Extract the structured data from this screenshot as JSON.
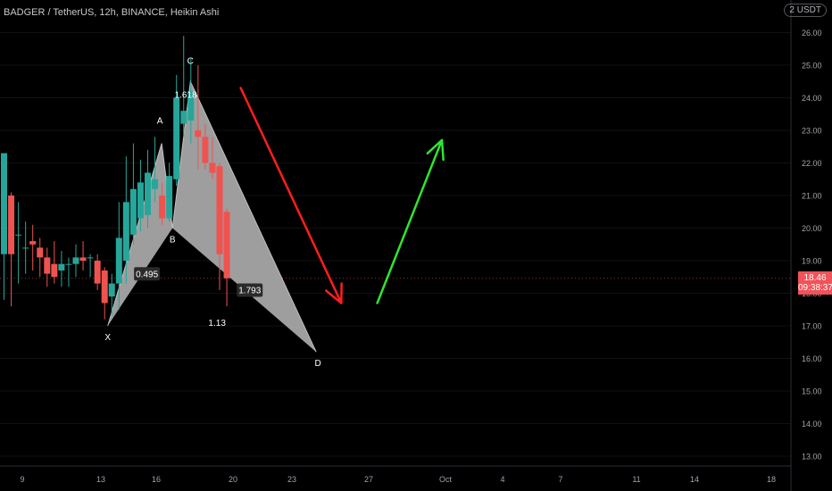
{
  "header": {
    "symbol_title": "BADGER / TetherUS, 12h, BINANCE, Heikin Ashi",
    "currency": "USDT",
    "currency_prefix": "2"
  },
  "last_price": {
    "value": "18.46",
    "countdown": "09:38:37",
    "y": 18.46
  },
  "colors": {
    "up": "#26a69a",
    "down": "#ef5350",
    "pattern_fill": "#a6a6a6",
    "arrow_down": "#ff1e1e",
    "arrow_up": "#2ee62e",
    "background": "#000000",
    "axis_text": "#a0a3ab"
  },
  "chart_data": {
    "type": "candlestick",
    "ylim": [
      12.7,
      27.0
    ],
    "y_ticks": [
      "13.00",
      "14.00",
      "15.00",
      "16.00",
      "17.00",
      "18.00",
      "19.00",
      "20.00",
      "21.00",
      "22.00",
      "23.00",
      "24.00",
      "25.00",
      "26.00"
    ],
    "x_ticks": [
      "9",
      "13",
      "16",
      "20",
      "23",
      "27",
      "Oct",
      "4",
      "7",
      "11",
      "14",
      "18"
    ],
    "candles": [
      {
        "o": 19.2,
        "h": 22.3,
        "l": 17.8,
        "c": 22.3
      },
      {
        "o": 21.0,
        "h": 21.1,
        "l": 17.6,
        "c": 19.2
      },
      {
        "o": 19.8,
        "h": 20.8,
        "l": 18.3,
        "c": 19.8
      },
      {
        "o": 19.4,
        "h": 20.2,
        "l": 18.6,
        "c": 19.4
      },
      {
        "o": 19.6,
        "h": 20.1,
        "l": 18.7,
        "c": 19.5
      },
      {
        "o": 19.4,
        "h": 19.7,
        "l": 18.5,
        "c": 19.1
      },
      {
        "o": 19.1,
        "h": 19.4,
        "l": 18.2,
        "c": 18.6
      },
      {
        "o": 18.9,
        "h": 19.6,
        "l": 18.3,
        "c": 18.5
      },
      {
        "o": 18.7,
        "h": 19.3,
        "l": 18.2,
        "c": 18.9
      },
      {
        "o": 18.9,
        "h": 19.1,
        "l": 18.2,
        "c": 18.9
      },
      {
        "o": 18.9,
        "h": 19.5,
        "l": 18.5,
        "c": 19.1
      },
      {
        "o": 19.1,
        "h": 19.6,
        "l": 18.7,
        "c": 19.0
      },
      {
        "o": 19.1,
        "h": 19.2,
        "l": 18.5,
        "c": 19.1
      },
      {
        "o": 19.0,
        "h": 19.2,
        "l": 18.1,
        "c": 18.3
      },
      {
        "o": 18.7,
        "h": 18.8,
        "l": 17.2,
        "c": 17.7
      },
      {
        "o": 17.9,
        "h": 18.6,
        "l": 17.3,
        "c": 18.3
      },
      {
        "o": 18.3,
        "h": 20.8,
        "l": 17.5,
        "c": 19.7
      },
      {
        "o": 19.0,
        "h": 22.2,
        "l": 18.3,
        "c": 20.8
      },
      {
        "o": 19.8,
        "h": 22.6,
        "l": 19.5,
        "c": 21.2
      },
      {
        "o": 20.3,
        "h": 22.1,
        "l": 19.9,
        "c": 21.4
      },
      {
        "o": 20.4,
        "h": 22.4,
        "l": 20.0,
        "c": 21.7
      },
      {
        "o": 21.2,
        "h": 22.8,
        "l": 20.8,
        "c": 21.5
      },
      {
        "o": 21.0,
        "h": 21.4,
        "l": 20.1,
        "c": 20.3
      },
      {
        "o": 20.3,
        "h": 22.0,
        "l": 20.2,
        "c": 21.6
      },
      {
        "o": 21.5,
        "h": 24.7,
        "l": 21.3,
        "c": 24.0
      },
      {
        "o": 23.2,
        "h": 25.9,
        "l": 22.8,
        "c": 23.6
      },
      {
        "o": 23.3,
        "h": 25.2,
        "l": 22.6,
        "c": 24.2
      },
      {
        "o": 23.0,
        "h": 25.0,
        "l": 21.8,
        "c": 22.8
      },
      {
        "o": 22.8,
        "h": 23.2,
        "l": 21.8,
        "c": 22.0
      },
      {
        "o": 22.0,
        "h": 22.8,
        "l": 21.5,
        "c": 21.7
      },
      {
        "o": 21.9,
        "h": 22.0,
        "l": 18.1,
        "c": 19.2
      },
      {
        "o": 20.5,
        "h": 20.6,
        "l": 17.6,
        "c": 18.46
      }
    ],
    "pattern": {
      "points": [
        {
          "label": "X",
          "candle": 14.5,
          "y": 17.0
        },
        {
          "label": "A",
          "candle": 22.0,
          "y": 22.6
        },
        {
          "label": "B",
          "candle": 23.5,
          "y": 20.0
        },
        {
          "label": "C",
          "candle": 26.0,
          "y": 24.5
        },
        {
          "label": "D",
          "candle": 43.5,
          "y": 16.2
        }
      ],
      "ratios": [
        {
          "text": "1.618",
          "candle": 23.8,
          "y": 24.0
        },
        {
          "text": "0.495",
          "candle": 18.4,
          "y": 18.5
        },
        {
          "text": "1.793",
          "candle": 32.7,
          "y": 18.0
        },
        {
          "text": "1.13",
          "candle": 28.5,
          "y": 17.0
        }
      ]
    },
    "arrows": [
      {
        "name": "down-arrow",
        "from": {
          "candle": 33.0,
          "y": 24.3
        },
        "to": {
          "candle": 47.0,
          "y": 17.7
        }
      },
      {
        "name": "up-arrow",
        "from": {
          "candle": 52.0,
          "y": 17.7
        },
        "to": {
          "candle": 61.0,
          "y": 22.7
        }
      }
    ]
  }
}
